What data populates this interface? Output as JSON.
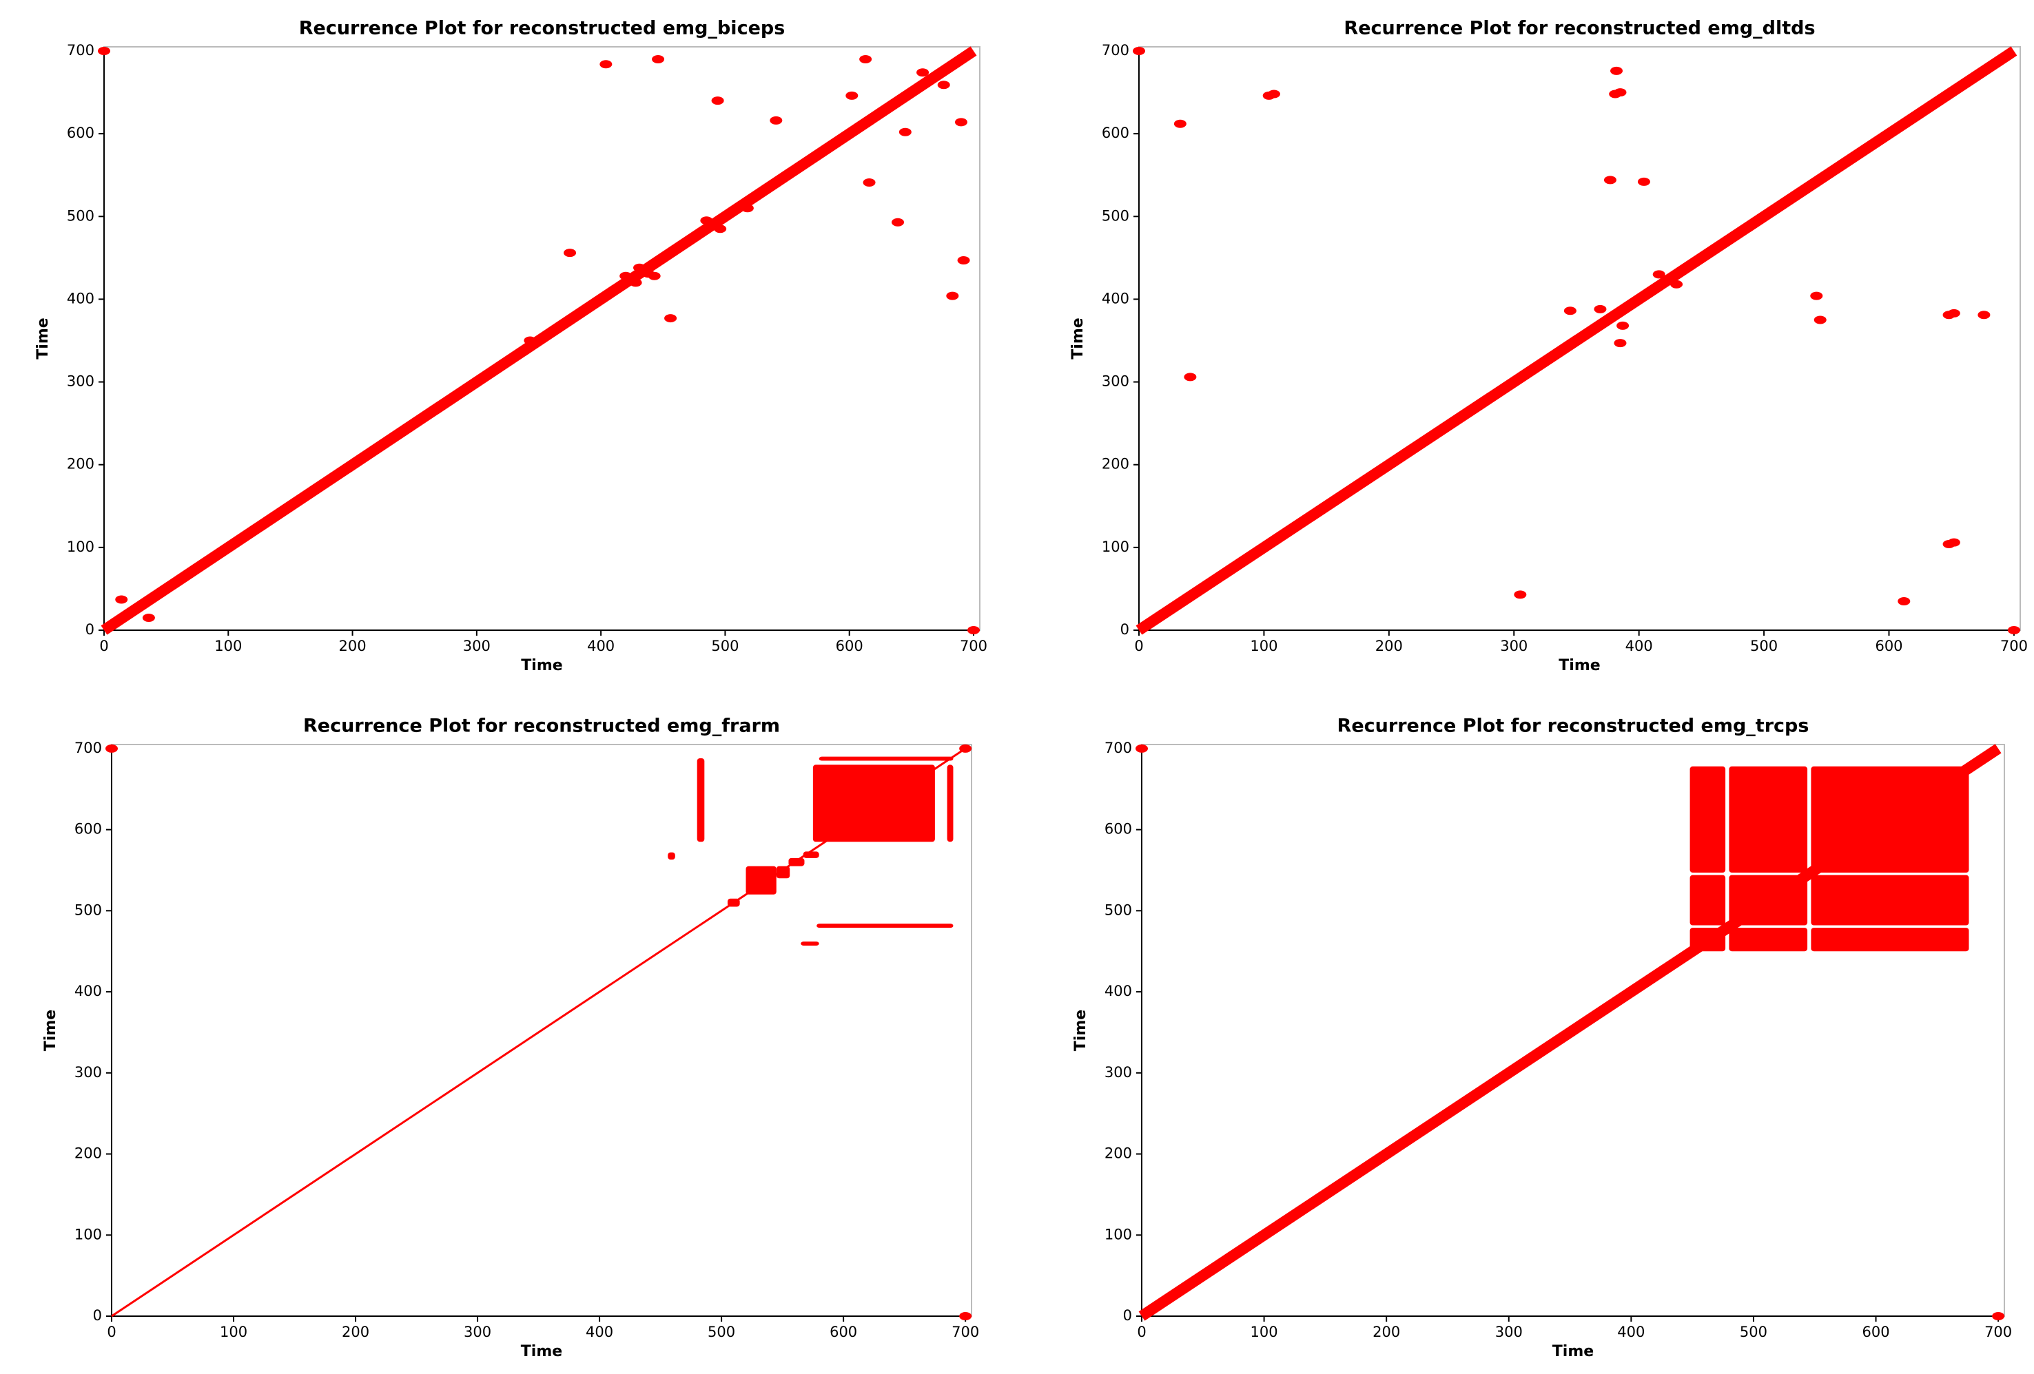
{
  "chart_data": [
    {
      "type": "recurrence",
      "title": "Recurrence Plot for reconstructed emg_biceps",
      "x_label": "Time",
      "y_label": "Time",
      "xlim": [
        0,
        705
      ],
      "ylim": [
        0,
        705
      ],
      "xticks": [
        0,
        100,
        200,
        300,
        400,
        500,
        600,
        700
      ],
      "yticks": [
        0,
        100,
        200,
        300,
        400,
        500,
        600,
        700
      ],
      "color": "#ff0000",
      "diagonal": {
        "x": [
          0,
          700
        ],
        "y": [
          0,
          700
        ]
      },
      "x": [
        0,
        14,
        36,
        404,
        446,
        494,
        541,
        613,
        602,
        659,
        676,
        690,
        645,
        616,
        639,
        692,
        683,
        456,
        375,
        485,
        496,
        420,
        428,
        431,
        438,
        443,
        518,
        350,
        343,
        700
      ],
      "y": [
        700,
        37,
        15,
        684,
        690,
        640,
        616,
        690,
        646,
        674,
        659,
        614,
        602,
        541,
        493,
        447,
        404,
        377,
        456,
        495,
        485,
        428,
        420,
        438,
        431,
        428,
        510,
        350,
        350,
        0
      ],
      "blocks": []
    },
    {
      "type": "recurrence",
      "title": "Recurrence Plot for reconstructed emg_dltds",
      "x_label": "Time",
      "y_label": "Time",
      "xlim": [
        0,
        705
      ],
      "ylim": [
        0,
        705
      ],
      "xticks": [
        0,
        100,
        200,
        300,
        400,
        500,
        600,
        700
      ],
      "yticks": [
        0,
        100,
        200,
        300,
        400,
        500,
        600,
        700
      ],
      "color": "#ff0000",
      "diagonal": {
        "x": [
          0,
          700
        ],
        "y": [
          0,
          700
        ]
      },
      "x": [
        0,
        33,
        41,
        104,
        108,
        305,
        382,
        385,
        381,
        377,
        404,
        345,
        369,
        387,
        385,
        416,
        430,
        542,
        545,
        648,
        652,
        676,
        648,
        652,
        612,
        700
      ],
      "y": [
        700,
        612,
        306,
        646,
        648,
        43,
        676,
        650,
        648,
        544,
        542,
        386,
        388,
        368,
        347,
        430,
        418,
        404,
        375,
        381,
        383,
        381,
        104,
        106,
        35,
        0
      ],
      "blocks": []
    },
    {
      "type": "recurrence",
      "title": "Recurrence Plot for reconstructed emg_frarm",
      "x_label": "Time",
      "y_label": "Time",
      "xlim": [
        0,
        705
      ],
      "ylim": [
        0,
        705
      ],
      "xticks": [
        0,
        100,
        200,
        300,
        400,
        500,
        600,
        700
      ],
      "yticks": [
        0,
        100,
        200,
        300,
        400,
        500,
        600,
        700
      ],
      "color": "#ff0000",
      "diagonal": {
        "x": [
          0,
          700
        ],
        "y": [
          0,
          700
        ]
      },
      "x": [
        0,
        700,
        700
      ],
      "y": [
        700,
        0,
        700
      ],
      "blocks": [
        {
          "x": [
            575,
            675
          ],
          "y": [
            585,
            680
          ]
        },
        {
          "x": [
            520,
            545
          ],
          "y": [
            520,
            555
          ]
        },
        {
          "x": [
            545,
            556
          ],
          "y": [
            540,
            555
          ]
        },
        {
          "x": [
            555,
            568
          ],
          "y": [
            555,
            565
          ]
        },
        {
          "x": [
            567,
            580
          ],
          "y": [
            565,
            573
          ]
        },
        {
          "x": [
            456,
            462
          ],
          "y": [
            563,
            572
          ]
        },
        {
          "x": [
            480,
            486
          ],
          "y": [
            585,
            688
          ]
        },
        {
          "x": [
            565,
            580
          ],
          "y": [
            457,
            462
          ]
        },
        {
          "x": [
            578,
            690
          ],
          "y": [
            479,
            484
          ]
        },
        {
          "x": [
            685,
            690
          ],
          "y": [
            585,
            680
          ]
        },
        {
          "x": [
            580,
            690
          ],
          "y": [
            685,
            690
          ]
        },
        {
          "x": [
            505,
            515
          ],
          "y": [
            505,
            515
          ]
        }
      ]
    },
    {
      "type": "recurrence",
      "title": "Recurrence Plot for reconstructed emg_trcps",
      "x_label": "Time",
      "y_label": "Time",
      "xlim": [
        0,
        705
      ],
      "ylim": [
        0,
        705
      ],
      "xticks": [
        0,
        100,
        200,
        300,
        400,
        500,
        600,
        700
      ],
      "yticks": [
        0,
        100,
        200,
        300,
        400,
        500,
        600,
        700
      ],
      "color": "#ff0000",
      "diagonal": {
        "x": [
          0,
          700
        ],
        "y": [
          0,
          700
        ]
      },
      "x": [
        0,
        700
      ],
      "y": [
        700,
        0
      ],
      "blocks": [
        {
          "x": [
            448,
            477
          ],
          "y": [
            450,
            479
          ]
        },
        {
          "x": [
            448,
            477
          ],
          "y": [
            482,
            544
          ]
        },
        {
          "x": [
            448,
            477
          ],
          "y": [
            547,
            678
          ]
        },
        {
          "x": [
            480,
            544
          ],
          "y": [
            450,
            479
          ]
        },
        {
          "x": [
            480,
            544
          ],
          "y": [
            482,
            544
          ]
        },
        {
          "x": [
            480,
            544
          ],
          "y": [
            547,
            678
          ]
        },
        {
          "x": [
            547,
            676
          ],
          "y": [
            450,
            479
          ]
        },
        {
          "x": [
            547,
            676
          ],
          "y": [
            482,
            544
          ]
        },
        {
          "x": [
            547,
            676
          ],
          "y": [
            547,
            678
          ]
        }
      ]
    }
  ]
}
